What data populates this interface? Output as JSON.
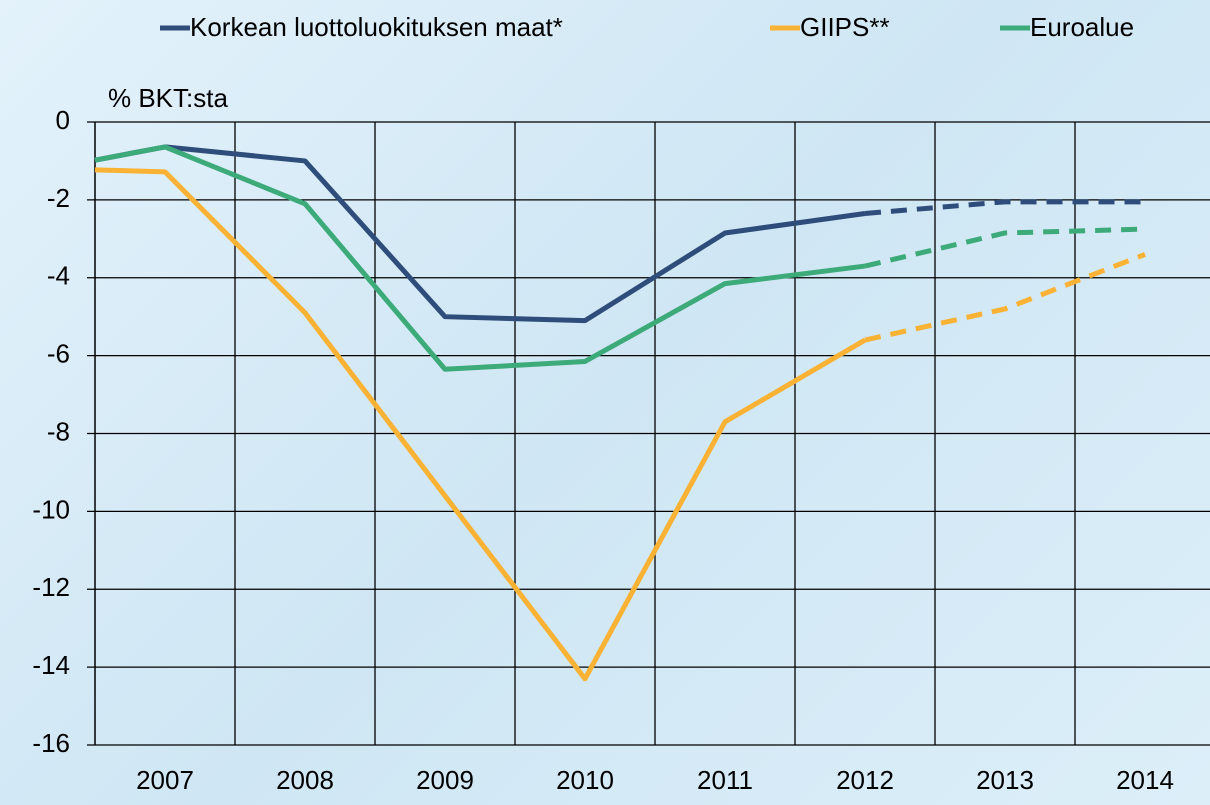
{
  "chart_data": {
    "type": "line",
    "y_label": "% BKT:sta",
    "x": [
      2006.5,
      2007,
      2008,
      2009,
      2010,
      2011,
      2012,
      2013,
      2014
    ],
    "xlim": [
      2006.5,
      2014.5
    ],
    "xticks": [
      2007,
      2008,
      2009,
      2010,
      2011,
      2012,
      2013,
      2014
    ],
    "ylim": [
      -16,
      0
    ],
    "yticks": [
      0,
      -2,
      -4,
      -6,
      -8,
      -10,
      -12,
      -14,
      -16
    ],
    "grid": true,
    "forecast_start": 2012,
    "legend": "top",
    "series": [
      {
        "name": "Korkean luottoluokituksen maat*",
        "color": "#2e4d7b",
        "values": [
          -0.98,
          -0.64,
          -1.0,
          -5.0,
          -5.1,
          -2.85,
          -2.35,
          -2.05,
          -2.05
        ]
      },
      {
        "name": "GIIPS**",
        "color": "#f9b234",
        "values": [
          -1.23,
          -1.28,
          -4.9,
          -9.6,
          -14.3,
          -7.7,
          -5.6,
          -4.8,
          -3.4
        ]
      },
      {
        "name": "Euroalue",
        "color": "#3daa7a",
        "values": [
          -0.98,
          -0.64,
          -2.1,
          -6.35,
          -6.15,
          -4.15,
          -3.7,
          -2.85,
          -2.75
        ]
      }
    ]
  }
}
